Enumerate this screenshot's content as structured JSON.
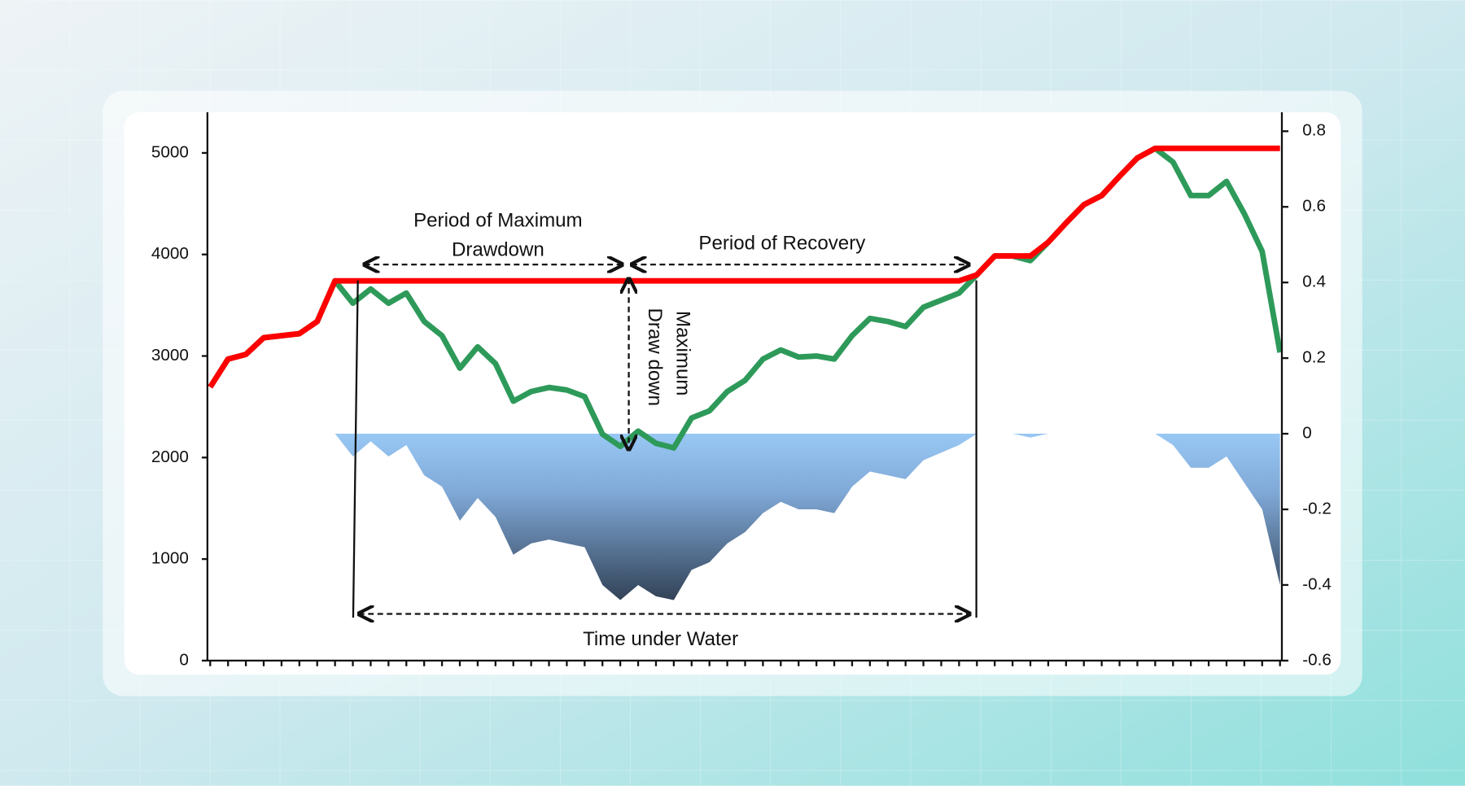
{
  "chart_data": {
    "type": "line",
    "categories": [
      null,
      null,
      null,
      null,
      null,
      null,
      null,
      null,
      null,
      null,
      null,
      null,
      null,
      null,
      null,
      null,
      null,
      null,
      null,
      null,
      null,
      null,
      null,
      null,
      null,
      null,
      null,
      null,
      null,
      null,
      null,
      null,
      null,
      null,
      null,
      null,
      null,
      null,
      null,
      null,
      null,
      null,
      null,
      null,
      null,
      null,
      null,
      null,
      null,
      null,
      null,
      null,
      null,
      null,
      null,
      null,
      null,
      null,
      null,
      null,
      null
    ],
    "ylim": [
      0,
      5400
    ],
    "yticks": [
      0,
      1000,
      2000,
      3000,
      4000,
      5000
    ],
    "y2lim": [
      -0.6,
      0.85
    ],
    "y2ticks": [
      -0.6,
      -0.4,
      -0.2,
      0,
      0.2,
      0.4,
      0.6,
      0.8
    ],
    "series": [
      {
        "type": "area",
        "axis": "y2",
        "color": "#99c8f5",
        "values": [
          0,
          0,
          0,
          0,
          0,
          0,
          0,
          0,
          -0.06,
          -0.02,
          -0.06,
          -0.03,
          -0.11,
          -0.14,
          -0.23,
          -0.17,
          -0.22,
          -0.32,
          -0.29,
          -0.28,
          -0.29,
          -0.3,
          -0.4,
          -0.44,
          -0.4,
          -0.43,
          -0.44,
          -0.36,
          -0.34,
          -0.29,
          -0.26,
          -0.21,
          -0.18,
          -0.2,
          -0.2,
          -0.21,
          -0.14,
          -0.1,
          -0.11,
          -0.12,
          -0.07,
          -0.05,
          -0.03,
          0,
          0,
          0,
          -0.01,
          0,
          0,
          0,
          0,
          0,
          0,
          0,
          -0.03,
          -0.09,
          -0.09,
          -0.06,
          -0.13,
          -0.2,
          -0.4
        ]
      },
      {
        "type": "line",
        "color": "#2e9a5a",
        "values": [
          2694,
          2970,
          3016,
          3180,
          3200,
          3220,
          3340,
          3740,
          3520,
          3660,
          3520,
          3620,
          3340,
          3200,
          2880,
          3090,
          2925,
          2555,
          2650,
          2690,
          2665,
          2600,
          2230,
          2110,
          2260,
          2140,
          2095,
          2390,
          2460,
          2650,
          2760,
          2970,
          3060,
          2990,
          3000,
          2970,
          3200,
          3370,
          3340,
          3290,
          3480,
          3550,
          3620,
          3800,
          3985,
          3985,
          3940,
          4120,
          4310,
          4490,
          4580,
          4770,
          4950,
          5045,
          4910,
          4580,
          4580,
          4720,
          4400,
          4030,
          3035
        ]
      },
      {
        "type": "line",
        "color": "#ff0000",
        "values": [
          2694,
          2970,
          3016,
          3180,
          3200,
          3220,
          3340,
          3740,
          3740,
          3740,
          3740,
          3740,
          3740,
          3740,
          3740,
          3740,
          3740,
          3740,
          3740,
          3740,
          3740,
          3740,
          3740,
          3740,
          3740,
          3740,
          3740,
          3740,
          3740,
          3740,
          3740,
          3740,
          3740,
          3740,
          3740,
          3740,
          3740,
          3740,
          3740,
          3740,
          3740,
          3740,
          3740,
          3800,
          3985,
          3985,
          3985,
          4120,
          4310,
          4490,
          4580,
          4770,
          4950,
          5045,
          5045,
          5045,
          5045,
          5045,
          5045,
          5045,
          5045
        ]
      }
    ],
    "annotations": [
      "Period of Maximum",
      "Drawdown",
      "Period of Recovery",
      "Maximum",
      "Draw down",
      "Time under Water"
    ]
  }
}
